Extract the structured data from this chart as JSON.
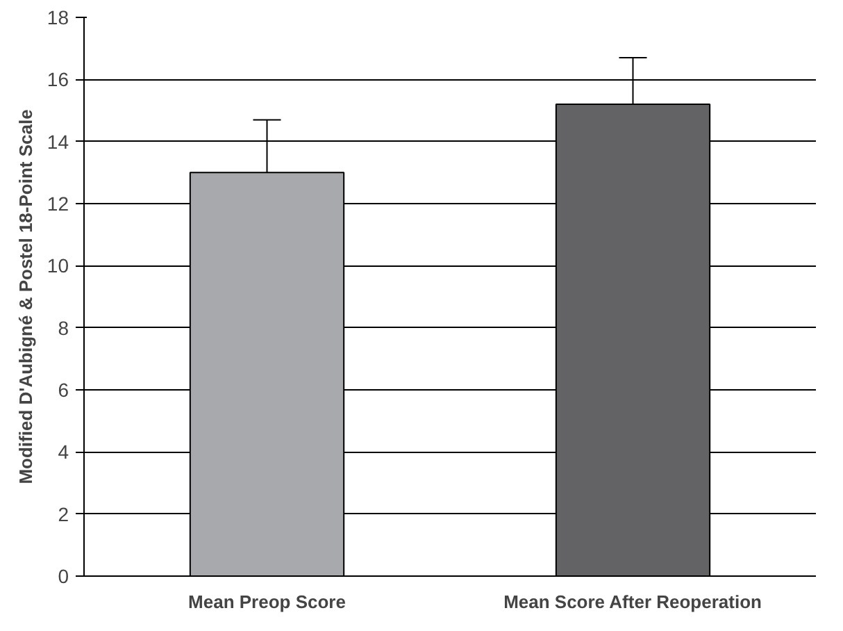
{
  "chart_data": {
    "type": "bar",
    "ylabel": "Modified D'Aubigné & Postel 18-Point Scale",
    "categories": [
      "Mean Preop Score",
      "Mean Score After Reoperation"
    ],
    "values": [
      13.0,
      15.2
    ],
    "colors": [
      "#a8a9ad",
      "#636265"
    ],
    "errors": [
      [
        13.0,
        14.7
      ],
      [
        15.2,
        16.7
      ]
    ],
    "ylim": [
      0,
      18
    ],
    "yticks": [
      0,
      2,
      4,
      6,
      8,
      10,
      12,
      14,
      16,
      18
    ],
    "grid": "y"
  }
}
